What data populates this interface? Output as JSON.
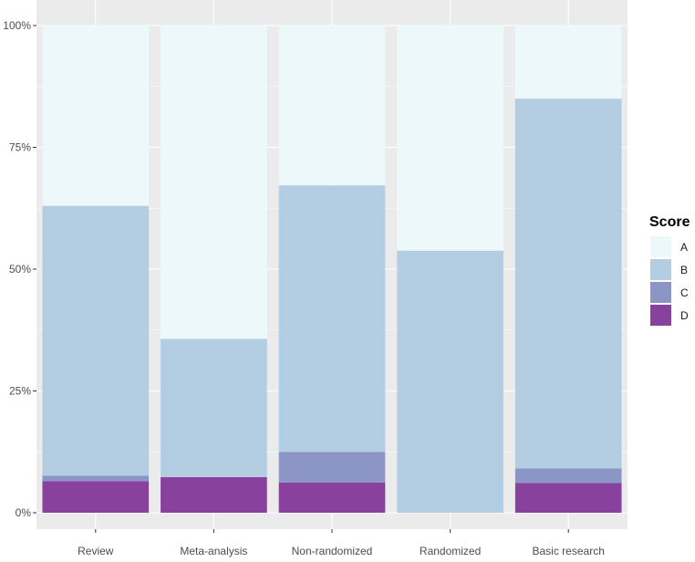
{
  "chart_data": {
    "type": "bar",
    "stacked": true,
    "categories": [
      "Review",
      "Meta-analysis",
      "Non-randomized",
      "Randomized",
      "Basic research"
    ],
    "series": [
      {
        "name": "A",
        "color": "#edf8fb",
        "values": [
          37.0,
          64.3,
          32.8,
          46.2,
          15.0
        ]
      },
      {
        "name": "B",
        "color": "#b3cde3",
        "values": [
          55.4,
          28.4,
          54.7,
          53.8,
          75.9
        ]
      },
      {
        "name": "C",
        "color": "#8c96c6",
        "values": [
          1.1,
          0.0,
          6.3,
          0.0,
          3.0
        ]
      },
      {
        "name": "D",
        "color": "#88419d",
        "values": [
          6.5,
          7.3,
          6.2,
          0.0,
          6.1
        ]
      }
    ],
    "ylim": [
      0,
      100
    ],
    "yticks": [
      0,
      25,
      50,
      75,
      100
    ],
    "ytick_labels": [
      "0%",
      "25%",
      "50%",
      "75%",
      "100%"
    ],
    "grid": true,
    "panel_background": "#ebebeb",
    "legend": {
      "title": "Score",
      "position": "right",
      "entries": [
        "A",
        "B",
        "C",
        "D"
      ]
    }
  }
}
